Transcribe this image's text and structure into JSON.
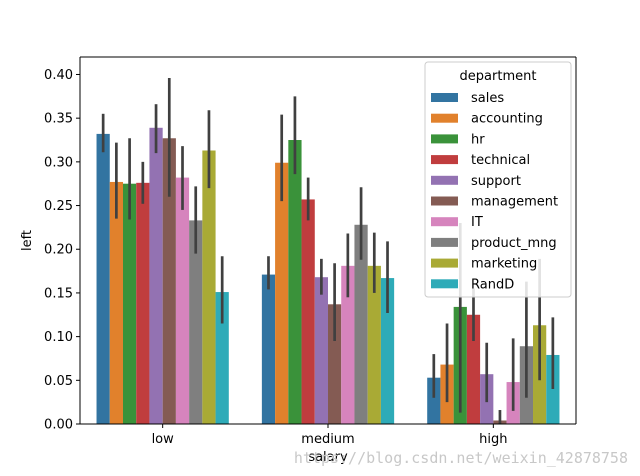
{
  "chart_data": {
    "type": "bar",
    "title": "",
    "xlabel": "salary",
    "ylabel": "left",
    "categories": [
      "low",
      "medium",
      "high"
    ],
    "ylim": [
      0,
      0.42
    ],
    "yticks": [
      0.0,
      0.05,
      0.1,
      0.15,
      0.2,
      0.25,
      0.3,
      0.35,
      0.4
    ],
    "ytick_labels": [
      "0.00",
      "0.05",
      "0.10",
      "0.15",
      "0.20",
      "0.25",
      "0.30",
      "0.35",
      "0.40"
    ],
    "grid": false,
    "legend": {
      "title": "department",
      "placement": "top-right"
    },
    "series": [
      {
        "name": "sales",
        "color": "#3274a1",
        "values": [
          0.332,
          0.171,
          0.053
        ],
        "ci_low": [
          0.311,
          0.154,
          0.03
        ],
        "ci_high": [
          0.355,
          0.192,
          0.08
        ]
      },
      {
        "name": "accounting",
        "color": "#e1812c",
        "values": [
          0.277,
          0.299,
          0.068
        ],
        "ci_low": [
          0.235,
          0.255,
          0.025
        ],
        "ci_high": [
          0.322,
          0.354,
          0.115
        ]
      },
      {
        "name": "hr",
        "color": "#3a923a",
        "values": [
          0.275,
          0.325,
          0.134
        ],
        "ci_low": [
          0.234,
          0.286,
          0.013
        ],
        "ci_high": [
          0.327,
          0.375,
          0.23
        ]
      },
      {
        "name": "technical",
        "color": "#c03d3e",
        "values": [
          0.276,
          0.257,
          0.125
        ],
        "ci_low": [
          0.252,
          0.233,
          0.095
        ],
        "ci_high": [
          0.3,
          0.282,
          0.155
        ]
      },
      {
        "name": "support",
        "color": "#9372b2",
        "values": [
          0.339,
          0.168,
          0.057
        ],
        "ci_low": [
          0.31,
          0.148,
          0.025
        ],
        "ci_high": [
          0.366,
          0.189,
          0.093
        ]
      },
      {
        "name": "management",
        "color": "#845b53",
        "values": [
          0.327,
          0.137,
          0.004
        ],
        "ci_low": [
          0.26,
          0.095,
          0.0
        ],
        "ci_high": [
          0.396,
          0.184,
          0.016
        ]
      },
      {
        "name": "IT",
        "color": "#d684bd",
        "values": [
          0.282,
          0.181,
          0.048
        ],
        "ci_low": [
          0.245,
          0.145,
          0.015
        ],
        "ci_high": [
          0.318,
          0.218,
          0.098
        ]
      },
      {
        "name": "product_mng",
        "color": "#7f7f7f",
        "values": [
          0.233,
          0.228,
          0.089
        ],
        "ci_low": [
          0.195,
          0.188,
          0.03
        ],
        "ci_high": [
          0.272,
          0.271,
          0.163
        ]
      },
      {
        "name": "marketing",
        "color": "#a9aa35",
        "values": [
          0.313,
          0.181,
          0.113
        ],
        "ci_low": [
          0.27,
          0.15,
          0.05
        ],
        "ci_high": [
          0.359,
          0.219,
          0.189
        ]
      },
      {
        "name": "RandD",
        "color": "#2eabb8",
        "values": [
          0.151,
          0.167,
          0.079
        ],
        "ci_low": [
          0.115,
          0.127,
          0.04
        ],
        "ci_high": [
          0.192,
          0.209,
          0.122
        ]
      }
    ]
  },
  "watermark": "https://blog.csdn.net/weixin_42878758"
}
